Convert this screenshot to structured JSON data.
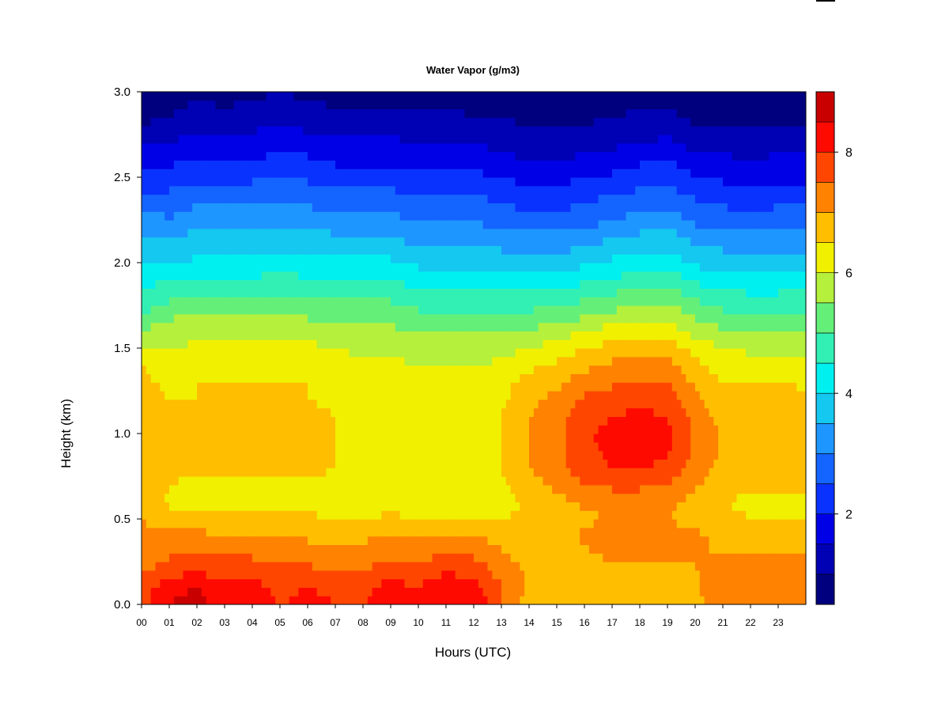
{
  "chart_data": {
    "type": "heatmap",
    "title": "Water Vapor (g/m3)",
    "xlabel": "Hours (UTC)",
    "ylabel": "Height (km)",
    "x_tick_labels": [
      "00",
      "01",
      "02",
      "03",
      "04",
      "05",
      "06",
      "07",
      "08",
      "09",
      "10",
      "11",
      "12",
      "13",
      "14",
      "15",
      "16",
      "17",
      "18",
      "19",
      "20",
      "21",
      "22",
      "23"
    ],
    "y_tick_labels": [
      "0.0",
      "0.5",
      "1.0",
      "1.5",
      "2.0",
      "2.5",
      "3.0"
    ],
    "xlim": [
      0,
      24
    ],
    "ylim": [
      0.0,
      3.0
    ],
    "colorbar": {
      "range": [
        0.5,
        9.0
      ],
      "tick_labels": [
        "2",
        "4",
        "6",
        "8"
      ],
      "tick_values": [
        2,
        4,
        6,
        8
      ],
      "levels": [
        0.5,
        1.0,
        1.5,
        2.0,
        2.5,
        3.0,
        3.5,
        4.0,
        4.5,
        5.0,
        5.5,
        6.0,
        6.5,
        7.0,
        7.5,
        8.0,
        8.5,
        9.0
      ],
      "colors": [
        "#00007F",
        "#0000B4",
        "#0000E6",
        "#0A32FF",
        "#1464FF",
        "#1E96FF",
        "#14C8F0",
        "#00F0F0",
        "#32F0B4",
        "#64F078",
        "#B4F03C",
        "#F0F000",
        "#FFBE00",
        "#FF8200",
        "#FF4600",
        "#FF0A00",
        "#C80000",
        "#7F0000"
      ]
    },
    "grid": false,
    "colormap": "jet",
    "hours": [
      0,
      1,
      2,
      3,
      4,
      5,
      6,
      7,
      8,
      9,
      10,
      11,
      12,
      13,
      14,
      15,
      16,
      17,
      18,
      19,
      20,
      21,
      22,
      23,
      24
    ],
    "heights_km": [
      0.0,
      0.1,
      0.2,
      0.3,
      0.4,
      0.5,
      0.6,
      0.7,
      0.8,
      0.9,
      1.0,
      1.1,
      1.2,
      1.3,
      1.4,
      1.5,
      1.6,
      1.7,
      1.8,
      1.9,
      2.0,
      2.1,
      2.2,
      2.3,
      2.4,
      2.5,
      2.6,
      2.7,
      2.8,
      2.9,
      3.0
    ],
    "profiles": [
      [
        7.7,
        7.7,
        7.4,
        7.1,
        7.1,
        7.0,
        6.9,
        6.8,
        7.0,
        7.0,
        7.0,
        7.0,
        6.8,
        6.6,
        6.5,
        6.1,
        5.6,
        5.0,
        4.6,
        4.3,
        4.0,
        3.7,
        3.4,
        3.0,
        2.5,
        2.2,
        1.8,
        1.4,
        1.0,
        0.8,
        0.7
      ],
      [
        8.5,
        8.4,
        7.8,
        7.4,
        7.1,
        6.7,
        6.4,
        6.5,
        6.6,
        6.6,
        6.6,
        6.6,
        6.5,
        6.4,
        6.2,
        6.0,
        5.7,
        5.4,
        4.9,
        4.5,
        4.0,
        3.6,
        3.2,
        2.9,
        2.6,
        2.2,
        1.9,
        1.5,
        1.2,
        0.9,
        0.8
      ],
      [
        8.6,
        8.5,
        7.9,
        7.5,
        7.2,
        6.6,
        6.3,
        6.4,
        6.6,
        6.6,
        6.6,
        6.6,
        6.5,
        6.5,
        6.3,
        6.1,
        5.8,
        5.5,
        5.1,
        4.6,
        4.1,
        3.8,
        3.5,
        3.1,
        2.8,
        2.4,
        2.0,
        1.7,
        1.4,
        1.1,
        0.9
      ],
      [
        8.3,
        8.2,
        7.8,
        7.4,
        7.0,
        6.6,
        6.3,
        6.4,
        6.6,
        6.6,
        6.6,
        6.6,
        6.5,
        6.5,
        6.3,
        6.1,
        5.8,
        5.4,
        5.0,
        4.6,
        4.1,
        3.8,
        3.4,
        3.1,
        2.7,
        2.3,
        2.0,
        1.6,
        1.3,
        1.0,
        0.9
      ],
      [
        8.2,
        8.2,
        7.8,
        7.4,
        7.0,
        6.6,
        6.3,
        6.4,
        6.6,
        6.6,
        6.6,
        6.6,
        6.5,
        6.5,
        6.3,
        6.1,
        5.8,
        5.4,
        5.0,
        4.6,
        4.1,
        3.8,
        3.4,
        3.1,
        2.8,
        2.4,
        2.0,
        1.7,
        1.4,
        1.1,
        0.9
      ],
      [
        8.0,
        7.9,
        7.6,
        7.3,
        6.9,
        6.6,
        6.3,
        6.4,
        6.6,
        6.6,
        6.6,
        6.6,
        6.5,
        6.5,
        6.3,
        6.1,
        5.8,
        5.5,
        5.1,
        4.7,
        4.2,
        3.9,
        3.6,
        3.2,
        2.9,
        2.5,
        2.2,
        1.8,
        1.5,
        1.2,
        1.0
      ],
      [
        8.1,
        8.0,
        7.6,
        7.3,
        6.9,
        6.6,
        6.3,
        6.4,
        6.6,
        6.6,
        6.6,
        6.6,
        6.5,
        6.5,
        6.3,
        6.1,
        5.8,
        5.4,
        5.0,
        4.6,
        4.1,
        3.8,
        3.5,
        3.1,
        2.8,
        2.4,
        2.1,
        1.7,
        1.4,
        1.1,
        0.9
      ],
      [
        8.0,
        7.9,
        7.5,
        7.2,
        6.9,
        6.5,
        6.3,
        6.4,
        6.5,
        6.5,
        6.5,
        6.5,
        6.4,
        6.3,
        6.2,
        6.0,
        5.7,
        5.3,
        4.9,
        4.5,
        4.1,
        3.7,
        3.4,
        3.0,
        2.7,
        2.3,
        1.9,
        1.6,
        1.3,
        1.0,
        0.9
      ],
      [
        8.0,
        7.9,
        7.5,
        7.2,
        6.9,
        6.5,
        6.2,
        6.3,
        6.4,
        6.4,
        6.4,
        6.4,
        6.3,
        6.2,
        6.1,
        5.9,
        5.6,
        5.3,
        4.9,
        4.5,
        4.1,
        3.7,
        3.3,
        3.0,
        2.6,
        2.3,
        1.9,
        1.6,
        1.3,
        1.0,
        0.8
      ],
      [
        8.2,
        8.2,
        7.8,
        7.4,
        7.0,
        6.6,
        6.3,
        6.3,
        6.4,
        6.4,
        6.4,
        6.4,
        6.3,
        6.2,
        6.1,
        5.9,
        5.6,
        5.3,
        4.9,
        4.5,
        4.1,
        3.7,
        3.3,
        3.0,
        2.6,
        2.3,
        1.9,
        1.6,
        1.3,
        1.0,
        0.8
      ],
      [
        8.1,
        8.0,
        7.6,
        7.3,
        6.9,
        6.5,
        6.2,
        6.3,
        6.4,
        6.4,
        6.4,
        6.4,
        6.3,
        6.2,
        6.0,
        5.8,
        5.5,
        5.1,
        4.7,
        4.3,
        3.9,
        3.5,
        3.1,
        2.8,
        2.5,
        2.1,
        1.8,
        1.5,
        1.2,
        1.0,
        0.8
      ],
      [
        8.5,
        8.5,
        7.9,
        7.5,
        7.1,
        6.5,
        6.2,
        6.3,
        6.4,
        6.4,
        6.4,
        6.4,
        6.3,
        6.2,
        6.0,
        5.8,
        5.5,
        5.1,
        4.7,
        4.3,
        3.9,
        3.5,
        3.1,
        2.8,
        2.5,
        2.1,
        1.8,
        1.5,
        1.2,
        1.0,
        0.8
      ],
      [
        8.4,
        8.3,
        7.8,
        7.4,
        7.0,
        6.5,
        6.2,
        6.3,
        6.4,
        6.4,
        6.4,
        6.4,
        6.3,
        6.2,
        6.0,
        5.8,
        5.5,
        5.1,
        4.7,
        4.3,
        3.9,
        3.5,
        3.1,
        2.8,
        2.5,
        2.1,
        1.8,
        1.5,
        1.2,
        0.9,
        0.8
      ],
      [
        7.5,
        7.5,
        7.3,
        7.0,
        6.9,
        6.5,
        6.3,
        6.4,
        6.5,
        6.5,
        6.5,
        6.5,
        6.4,
        6.3,
        6.1,
        5.8,
        5.4,
        5.0,
        4.6,
        4.2,
        3.8,
        3.4,
        3.0,
        2.7,
        2.3,
        2.0,
        1.7,
        1.3,
        1.1,
        0.9,
        0.7
      ],
      [
        6.7,
        6.9,
        6.9,
        6.8,
        6.8,
        6.6,
        6.6,
        6.8,
        7.0,
        7.0,
        7.0,
        7.0,
        6.9,
        6.7,
        6.4,
        6.0,
        5.6,
        5.1,
        4.6,
        4.2,
        3.7,
        3.3,
        2.9,
        2.5,
        2.2,
        1.8,
        1.5,
        1.2,
        1.0,
        0.8,
        0.7
      ],
      [
        6.5,
        6.8,
        6.8,
        6.8,
        6.8,
        6.7,
        6.8,
        7.1,
        7.3,
        7.3,
        7.3,
        7.3,
        7.1,
        6.9,
        6.6,
        6.2,
        5.7,
        5.2,
        4.7,
        4.2,
        3.7,
        3.3,
        2.9,
        2.5,
        2.2,
        1.8,
        1.5,
        1.2,
        1.0,
        0.8,
        0.7
      ],
      [
        6.4,
        6.8,
        6.8,
        6.9,
        7.1,
        6.9,
        7.1,
        7.5,
        7.8,
        7.9,
        7.9,
        7.8,
        7.6,
        7.2,
        6.9,
        6.5,
        6.0,
        5.4,
        4.9,
        4.4,
        3.9,
        3.5,
        3.0,
        2.7,
        2.3,
        2.0,
        1.6,
        1.3,
        1.0,
        0.9,
        0.7
      ],
      [
        6.5,
        6.8,
        6.9,
        7.1,
        7.4,
        7.0,
        7.2,
        7.6,
        8.0,
        8.1,
        8.2,
        8.0,
        7.8,
        7.4,
        7.1,
        6.7,
        6.2,
        5.6,
        5.1,
        4.6,
        4.1,
        3.7,
        3.2,
        2.8,
        2.5,
        2.1,
        1.7,
        1.4,
        1.1,
        0.9,
        0.8
      ],
      [
        6.5,
        6.8,
        6.9,
        7.1,
        7.4,
        7.0,
        7.2,
        7.6,
        8.0,
        8.2,
        8.3,
        8.1,
        7.9,
        7.5,
        7.2,
        6.8,
        6.3,
        5.8,
        5.2,
        4.7,
        4.2,
        3.8,
        3.4,
        3.0,
        2.6,
        2.3,
        1.9,
        1.5,
        1.2,
        1.0,
        0.8
      ],
      [
        6.6,
        6.9,
        6.9,
        7.1,
        7.3,
        7.0,
        7.1,
        7.5,
        7.9,
        8.1,
        8.2,
        8.0,
        7.8,
        7.5,
        7.2,
        6.8,
        6.3,
        5.8,
        5.3,
        4.8,
        4.3,
        3.9,
        3.5,
        3.1,
        2.7,
        2.4,
        2.0,
        1.6,
        1.3,
        1.0,
        0.8
      ],
      [
        6.8,
        6.9,
        7.0,
        7.0,
        7.1,
        6.8,
        6.8,
        7.1,
        7.3,
        7.4,
        7.4,
        7.3,
        7.1,
        6.9,
        6.6,
        6.3,
        5.8,
        5.4,
        4.9,
        4.4,
        3.9,
        3.5,
        3.1,
        2.7,
        2.4,
        2.0,
        1.6,
        1.3,
        1.0,
        0.8,
        0.7
      ],
      [
        7.4,
        7.4,
        7.2,
        7.0,
        6.9,
        6.6,
        6.5,
        6.7,
        6.8,
        6.9,
        6.9,
        6.8,
        6.7,
        6.5,
        6.3,
        6.0,
        5.6,
        5.1,
        4.7,
        4.2,
        3.8,
        3.4,
        3.0,
        2.6,
        2.3,
        1.9,
        1.6,
        1.3,
        1.0,
        0.8,
        0.7
      ],
      [
        7.4,
        7.4,
        7.2,
        7.0,
        6.9,
        6.5,
        6.4,
        6.6,
        6.8,
        6.9,
        6.9,
        6.8,
        6.7,
        6.5,
        6.2,
        5.9,
        5.5,
        5.0,
        4.6,
        4.1,
        3.7,
        3.3,
        2.9,
        2.5,
        2.2,
        1.8,
        1.5,
        1.2,
        1.0,
        0.8,
        0.7
      ],
      [
        7.4,
        7.4,
        7.2,
        7.0,
        6.9,
        6.5,
        6.4,
        6.6,
        6.8,
        6.9,
        6.9,
        6.8,
        6.7,
        6.5,
        6.2,
        5.9,
        5.5,
        5.0,
        4.6,
        4.2,
        3.8,
        3.4,
        3.0,
        2.6,
        2.3,
        1.9,
        1.6,
        1.3,
        1.0,
        0.8,
        0.7
      ],
      [
        7.3,
        7.3,
        7.1,
        7.0,
        6.9,
        6.5,
        6.4,
        6.6,
        6.8,
        6.9,
        6.9,
        6.8,
        6.7,
        6.4,
        6.2,
        5.9,
        5.5,
        5.0,
        4.6,
        4.2,
        3.8,
        3.4,
        3.0,
        2.6,
        2.3,
        1.9,
        1.6,
        1.3,
        1.0,
        0.8,
        0.7
      ]
    ]
  }
}
